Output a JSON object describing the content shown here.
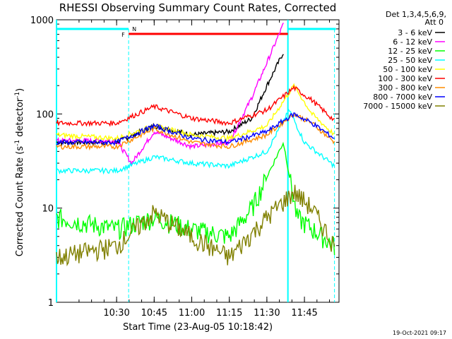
{
  "chart_data": {
    "type": "line",
    "title": "RHESSI Observing Summary Count Rates, Corrected",
    "xlabel": "Start Time (23-Aug-05 10:18:42)",
    "ylabel_main": "Corrected Count Rate (s",
    "ylabel_sup1": "-1",
    "ylabel_mid": " detector",
    "ylabel_sup2": "-1",
    "ylabel_end": ")",
    "y_scale": "log",
    "ylim": [
      1,
      1000
    ],
    "xlim_minutes": [
      10.1,
      11.98
    ],
    "x_ticks": [
      {
        "label": "10:30",
        "t": 10.5
      },
      {
        "label": "10:45",
        "t": 10.75
      },
      {
        "label": "11:00",
        "t": 11.0
      },
      {
        "label": "11:15",
        "t": 11.25
      },
      {
        "label": "11:30",
        "t": 11.5
      },
      {
        "label": "11:45",
        "t": 11.75
      }
    ],
    "y_ticks": [
      {
        "label": "1",
        "v": 1
      },
      {
        "label": "10",
        "v": 10
      },
      {
        "label": "100",
        "v": 100
      },
      {
        "label": "1000",
        "v": 1000
      }
    ],
    "legend_header": [
      "Det 1,3,4,5,6,9,",
      "Att 0"
    ],
    "legend_position": "right",
    "series": [
      {
        "name": "3 - 6 keV",
        "color": "#000000",
        "points": [
          [
            10.1,
            50
          ],
          [
            10.5,
            50
          ],
          [
            10.75,
            75
          ],
          [
            11.0,
            60
          ],
          [
            11.25,
            65
          ],
          [
            11.4,
            90
          ],
          [
            11.5,
            200
          ],
          [
            11.61,
            450
          ]
        ]
      },
      {
        "name": "6 - 12 keV",
        "color": "#ff00ff",
        "points": [
          [
            10.1,
            52
          ],
          [
            10.5,
            52
          ],
          [
            10.6,
            30
          ],
          [
            10.75,
            65
          ],
          [
            11.0,
            45
          ],
          [
            11.25,
            50
          ],
          [
            11.4,
            150
          ],
          [
            11.5,
            350
          ],
          [
            11.61,
            900
          ]
        ]
      },
      {
        "name": "12 - 25 keV",
        "color": "#00ff00",
        "points": [
          [
            10.1,
            8
          ],
          [
            10.5,
            6
          ],
          [
            10.75,
            8
          ],
          [
            11.0,
            6
          ],
          [
            11.25,
            5
          ],
          [
            11.4,
            10
          ],
          [
            11.61,
            50
          ],
          [
            11.7,
            8
          ],
          [
            11.95,
            4
          ]
        ]
      },
      {
        "name": "25 - 50 keV",
        "color": "#00ffff",
        "points": [
          [
            10.1,
            25
          ],
          [
            10.5,
            25
          ],
          [
            10.75,
            35
          ],
          [
            11.0,
            30
          ],
          [
            11.25,
            28
          ],
          [
            11.5,
            40
          ],
          [
            11.65,
            110
          ],
          [
            11.75,
            50
          ],
          [
            11.95,
            28
          ]
        ]
      },
      {
        "name": "50 - 100 keV",
        "color": "#ffff00",
        "points": [
          [
            10.1,
            60
          ],
          [
            10.5,
            55
          ],
          [
            10.75,
            75
          ],
          [
            11.0,
            60
          ],
          [
            11.25,
            55
          ],
          [
            11.5,
            75
          ],
          [
            11.68,
            200
          ],
          [
            11.8,
            100
          ],
          [
            11.95,
            60
          ]
        ]
      },
      {
        "name": "100 - 300 keV",
        "color": "#ff0000",
        "points": [
          [
            10.1,
            80
          ],
          [
            10.5,
            80
          ],
          [
            10.75,
            120
          ],
          [
            11.0,
            90
          ],
          [
            11.25,
            80
          ],
          [
            11.5,
            110
          ],
          [
            11.68,
            190
          ],
          [
            11.8,
            140
          ],
          [
            11.95,
            85
          ]
        ]
      },
      {
        "name": "300 - 800 keV",
        "color": "#ff8c00",
        "points": [
          [
            10.1,
            45
          ],
          [
            10.5,
            45
          ],
          [
            10.75,
            70
          ],
          [
            11.0,
            50
          ],
          [
            11.25,
            45
          ],
          [
            11.5,
            60
          ],
          [
            11.68,
            100
          ],
          [
            11.8,
            80
          ],
          [
            11.95,
            50
          ]
        ]
      },
      {
        "name": "800 - 7000 keV",
        "color": "#0000ff",
        "points": [
          [
            10.1,
            50
          ],
          [
            10.5,
            50
          ],
          [
            10.75,
            75
          ],
          [
            11.0,
            55
          ],
          [
            11.25,
            50
          ],
          [
            11.5,
            65
          ],
          [
            11.68,
            100
          ],
          [
            11.8,
            80
          ],
          [
            11.95,
            55
          ]
        ]
      },
      {
        "name": "7000 - 15000 keV",
        "color": "#808000",
        "points": [
          [
            10.1,
            3
          ],
          [
            10.5,
            4
          ],
          [
            10.75,
            9
          ],
          [
            11.0,
            5
          ],
          [
            11.25,
            3
          ],
          [
            11.5,
            8
          ],
          [
            11.68,
            15
          ],
          [
            11.8,
            10
          ],
          [
            11.95,
            4
          ]
        ]
      }
    ],
    "annotations": {
      "flag_F": "F",
      "flag_N": "N",
      "timestamp": "19-Oct-2021 09:17"
    }
  }
}
